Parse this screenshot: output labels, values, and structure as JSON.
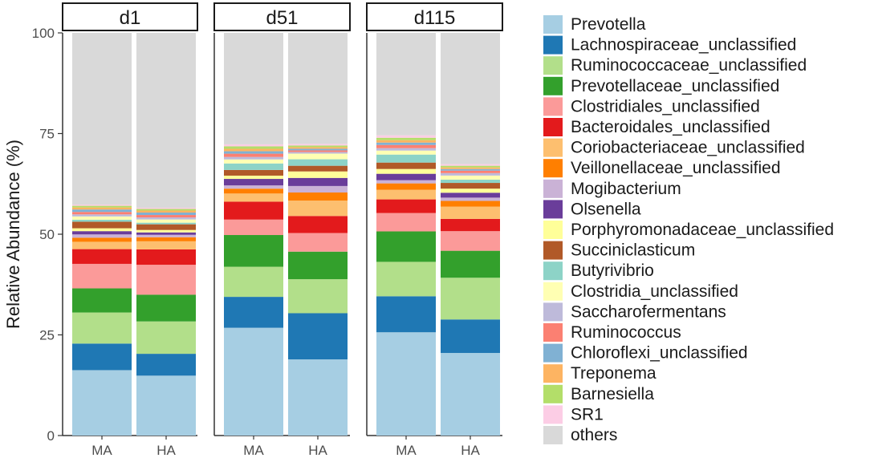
{
  "chart_data": {
    "type": "bar",
    "stacked": true,
    "faceted": true,
    "ylabel": "Relative Abundance (%)",
    "ylim": [
      0,
      100
    ],
    "yticks": [
      0,
      25,
      50,
      75,
      100
    ],
    "panels": [
      {
        "label": "d1",
        "categories": [
          "MA",
          "HA"
        ]
      },
      {
        "label": "d51",
        "categories": [
          "MA",
          "HA"
        ]
      },
      {
        "label": "d115",
        "categories": [
          "MA",
          "HA"
        ]
      }
    ],
    "bars": [
      "d1-MA",
      "d1-HA",
      "d51-MA",
      "d51-HA",
      "d115-MA",
      "d115-HA"
    ],
    "series": [
      {
        "name": "Prevotella",
        "color": "#a6cee3",
        "values": [
          16.0,
          14.8,
          26.5,
          18.8,
          25.8,
          20.2
        ]
      },
      {
        "name": "Lachnospiraceae_unclassified",
        "color": "#1f78b4",
        "values": [
          6.5,
          5.4,
          7.6,
          11.4,
          9.0,
          8.2
        ]
      },
      {
        "name": "Ruminococcaceae_unclassified",
        "color": "#b2df8a",
        "values": [
          7.6,
          8.0,
          7.4,
          8.4,
          8.6,
          10.2
        ]
      },
      {
        "name": "Prevotellaceae_unclassified",
        "color": "#33a02c",
        "values": [
          5.9,
          6.6,
          7.8,
          6.8,
          7.6,
          6.6
        ]
      },
      {
        "name": "Clostridiales_unclassified",
        "color": "#fb9a99",
        "values": [
          6.0,
          7.4,
          3.8,
          4.6,
          4.6,
          4.8
        ]
      },
      {
        "name": "Bacteroidales_unclassified",
        "color": "#e31a1c",
        "values": [
          3.6,
          3.8,
          4.4,
          4.2,
          3.4,
          3.0
        ]
      },
      {
        "name": "Coriobacteriaceae_unclassified",
        "color": "#fdbf6f",
        "values": [
          1.8,
          2.0,
          2.0,
          3.8,
          2.4,
          3.0
        ]
      },
      {
        "name": "Veillonellaceae_unclassified",
        "color": "#ff7f00",
        "values": [
          1.0,
          1.0,
          1.2,
          2.0,
          1.6,
          1.4
        ]
      },
      {
        "name": "Mogibacterium",
        "color": "#cab2d6",
        "values": [
          0.8,
          0.6,
          0.8,
          1.6,
          0.8,
          0.8
        ]
      },
      {
        "name": "Olsenella",
        "color": "#6a3d9a",
        "values": [
          0.8,
          0.6,
          1.6,
          2.0,
          1.6,
          1.2
        ]
      },
      {
        "name": "Porphyromonadaceae_unclassified",
        "color": "#ffff99",
        "values": [
          0.7,
          0.6,
          0.8,
          1.6,
          1.2,
          1.0
        ]
      },
      {
        "name": "Succiniclasticum",
        "color": "#b15928",
        "values": [
          1.6,
          1.4,
          1.4,
          1.4,
          1.6,
          1.4
        ]
      },
      {
        "name": "Butyrivibrio",
        "color": "#8dd3c7",
        "values": [
          0.5,
          0.4,
          1.6,
          1.6,
          2.0,
          0.8
        ]
      },
      {
        "name": "Clostridia_unclassified",
        "color": "#ffffb3",
        "values": [
          0.8,
          0.8,
          1.0,
          1.4,
          1.0,
          1.0
        ]
      },
      {
        "name": "Saccharofermentans",
        "color": "#bebada",
        "values": [
          0.5,
          0.5,
          0.6,
          0.4,
          0.6,
          0.6
        ]
      },
      {
        "name": "Ruminococcus",
        "color": "#fb8072",
        "values": [
          0.6,
          0.6,
          0.8,
          0.4,
          0.8,
          0.6
        ]
      },
      {
        "name": "Chloroflexi_unclassified",
        "color": "#80b1d3",
        "values": [
          0.6,
          0.6,
          0.6,
          0.4,
          0.6,
          0.4
        ]
      },
      {
        "name": "Treponema",
        "color": "#fdb462",
        "values": [
          0.5,
          0.5,
          0.6,
          0.4,
          0.6,
          0.4
        ]
      },
      {
        "name": "Barnesiella",
        "color": "#b3de69",
        "values": [
          0.4,
          0.4,
          0.6,
          0.4,
          0.6,
          0.4
        ]
      },
      {
        "name": "SR1",
        "color": "#fccde5",
        "values": [
          0.3,
          0.3,
          0.5,
          0.4,
          0.6,
          0.4
        ]
      },
      {
        "name": "others",
        "color": "#d9d9d9",
        "values": [
          42.0,
          43.2,
          27.4,
          27.4,
          25.6,
          32.1
        ]
      }
    ]
  }
}
